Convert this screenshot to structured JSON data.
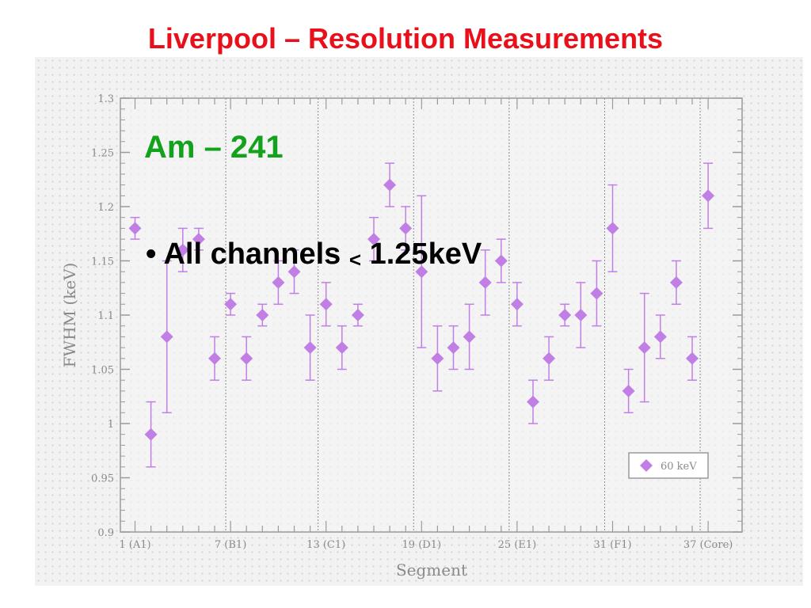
{
  "header": {
    "title": "Liverpool – Resolution Measurements"
  },
  "overlay": {
    "subtitle": "Am – 241",
    "bullet_prefix": "• All channels ",
    "bullet_symbol": "<",
    "bullet_suffix": " 1.25keV"
  },
  "chart_data": {
    "type": "scatter",
    "xlabel": "Segment",
    "ylabel": "FWHM (keV)",
    "xlim": [
      0,
      38
    ],
    "ylim": [
      0.9,
      1.3
    ],
    "yticks": [
      0.9,
      0.95,
      1,
      1.05,
      1.1,
      1.15,
      1.2,
      1.25,
      1.3
    ],
    "ytick_labels": [
      "0.9",
      "0.95",
      "1",
      "1.05",
      "1.1",
      "1.15",
      "1.2",
      "1.25",
      "1.3"
    ],
    "xtick_positions": [
      1,
      7,
      13,
      19,
      25,
      31,
      37
    ],
    "xtick_labels": [
      "1 (A1)",
      "7 (B1)",
      "13 (C1)",
      "19 (D1)",
      "25 (E1)",
      "31 (F1)",
      "37 (Core)"
    ],
    "group_dividers": [
      6.7,
      12.5,
      18.5,
      24.5,
      30.5,
      36.5
    ],
    "legend": {
      "label": "60 keV",
      "position": "bottom-right"
    },
    "marker_color": "#c17fe6",
    "series": [
      {
        "name": "60 keV",
        "x": [
          1,
          2,
          3,
          4,
          5,
          6,
          7,
          8,
          9,
          10,
          11,
          12,
          13,
          14,
          15,
          16,
          17,
          18,
          19,
          20,
          21,
          22,
          23,
          24,
          25,
          26,
          27,
          28,
          29,
          30,
          31,
          32,
          33,
          34,
          35,
          36,
          37
        ],
        "y": [
          1.18,
          0.99,
          1.08,
          1.16,
          1.17,
          1.06,
          1.11,
          1.06,
          1.1,
          1.13,
          1.14,
          1.07,
          1.11,
          1.07,
          1.1,
          1.17,
          1.22,
          1.18,
          1.14,
          1.06,
          1.07,
          1.08,
          1.13,
          1.15,
          1.11,
          1.02,
          1.06,
          1.1,
          1.1,
          1.12,
          1.18,
          1.03,
          1.07,
          1.08,
          1.13,
          1.06,
          1.21
        ],
        "err": [
          0.01,
          0.03,
          0.07,
          0.02,
          0.01,
          0.02,
          0.01,
          0.02,
          0.01,
          0.02,
          0.02,
          0.03,
          0.02,
          0.02,
          0.01,
          0.02,
          0.02,
          0.02,
          0.07,
          0.03,
          0.02,
          0.03,
          0.03,
          0.02,
          0.02,
          0.02,
          0.02,
          0.01,
          0.03,
          0.03,
          0.04,
          0.02,
          0.05,
          0.02,
          0.02,
          0.02,
          0.03
        ]
      }
    ]
  }
}
